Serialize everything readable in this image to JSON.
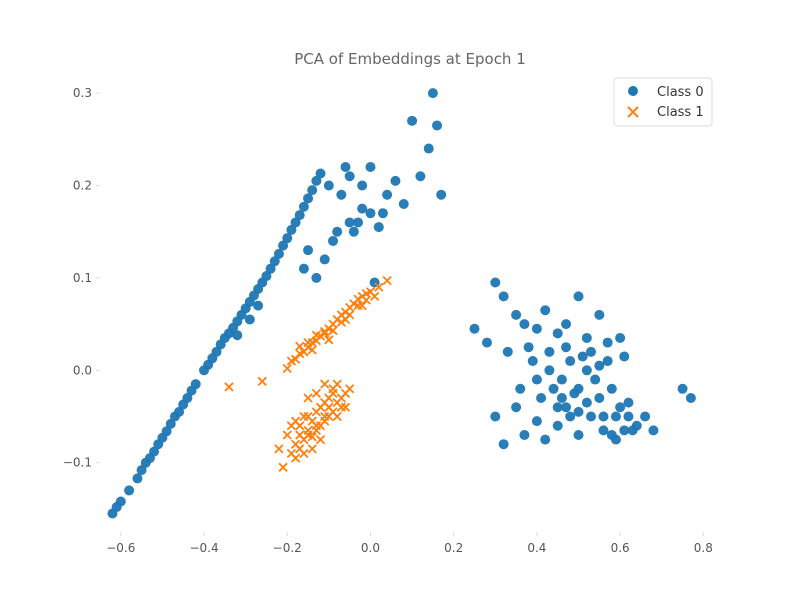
{
  "chart_data": {
    "type": "scatter",
    "title": "PCA of Embeddings at Epoch 1",
    "xlabel": "",
    "ylabel": "",
    "xlim": [
      -0.65,
      0.84
    ],
    "ylim": [
      -0.175,
      0.325
    ],
    "xticks": [
      -0.6,
      -0.4,
      -0.2,
      0.0,
      0.2,
      0.4,
      0.6,
      0.8
    ],
    "xtick_labels": [
      "−0.6",
      "−0.4",
      "−0.2",
      "0.0",
      "0.2",
      "0.4",
      "0.6",
      "0.8"
    ],
    "yticks": [
      -0.1,
      0.0,
      0.1,
      0.2,
      0.3
    ],
    "ytick_labels": [
      "−0.1",
      "0.0",
      "0.1",
      "0.2",
      "0.3"
    ],
    "grid": false,
    "legend_position": "top-right",
    "series": [
      {
        "name": "Class 0",
        "color": "#1f77b4",
        "marker": "circle",
        "points": [
          [
            -0.62,
            -0.155
          ],
          [
            -0.61,
            -0.148
          ],
          [
            -0.6,
            -0.142
          ],
          [
            -0.58,
            -0.13
          ],
          [
            -0.56,
            -0.117
          ],
          [
            -0.55,
            -0.108
          ],
          [
            -0.54,
            -0.1
          ],
          [
            -0.53,
            -0.095
          ],
          [
            -0.52,
            -0.088
          ],
          [
            -0.51,
            -0.08
          ],
          [
            -0.5,
            -0.073
          ],
          [
            -0.49,
            -0.066
          ],
          [
            -0.48,
            -0.058
          ],
          [
            -0.47,
            -0.05
          ],
          [
            -0.46,
            -0.045
          ],
          [
            -0.45,
            -0.037
          ],
          [
            -0.44,
            -0.03
          ],
          [
            -0.43,
            -0.022
          ],
          [
            -0.42,
            -0.015
          ],
          [
            -0.4,
            0.0
          ],
          [
            -0.39,
            0.006
          ],
          [
            -0.38,
            0.013
          ],
          [
            -0.37,
            0.02
          ],
          [
            -0.36,
            0.028
          ],
          [
            -0.35,
            0.035
          ],
          [
            -0.34,
            0.04
          ],
          [
            -0.33,
            0.046
          ],
          [
            -0.32,
            0.053
          ],
          [
            -0.31,
            0.06
          ],
          [
            -0.3,
            0.067
          ],
          [
            -0.29,
            0.074
          ],
          [
            -0.28,
            0.081
          ],
          [
            -0.27,
            0.088
          ],
          [
            -0.26,
            0.095
          ],
          [
            -0.25,
            0.102
          ],
          [
            -0.24,
            0.11
          ],
          [
            -0.23,
            0.118
          ],
          [
            -0.22,
            0.126
          ],
          [
            -0.21,
            0.135
          ],
          [
            -0.2,
            0.143
          ],
          [
            -0.19,
            0.152
          ],
          [
            -0.18,
            0.16
          ],
          [
            -0.17,
            0.168
          ],
          [
            -0.16,
            0.177
          ],
          [
            -0.15,
            0.186
          ],
          [
            -0.14,
            0.195
          ],
          [
            -0.13,
            0.205
          ],
          [
            -0.12,
            0.213
          ],
          [
            -0.1,
            0.2
          ],
          [
            -0.06,
            0.22
          ],
          [
            -0.05,
            0.21
          ],
          [
            -0.07,
            0.19
          ],
          [
            -0.03,
            0.16
          ],
          [
            -0.02,
            0.2
          ],
          [
            0.0,
            0.22
          ],
          [
            0.04,
            0.19
          ],
          [
            0.06,
            0.205
          ],
          [
            0.03,
            0.17
          ],
          [
            0.08,
            0.18
          ],
          [
            0.1,
            0.27
          ],
          [
            0.12,
            0.21
          ],
          [
            0.14,
            0.24
          ],
          [
            0.15,
            0.3
          ],
          [
            0.16,
            0.265
          ],
          [
            0.17,
            0.19
          ],
          [
            0.02,
            0.155
          ],
          [
            0.0,
            0.17
          ],
          [
            -0.02,
            0.175
          ],
          [
            -0.04,
            0.15
          ],
          [
            -0.05,
            0.16
          ],
          [
            -0.08,
            0.15
          ],
          [
            -0.09,
            0.14
          ],
          [
            -0.11,
            0.12
          ],
          [
            -0.13,
            0.1
          ],
          [
            -0.15,
            0.13
          ],
          [
            -0.16,
            0.11
          ],
          [
            0.01,
            0.095
          ],
          [
            -0.27,
            0.07
          ],
          [
            -0.29,
            0.055
          ],
          [
            -0.32,
            0.038
          ],
          [
            0.3,
            0.095
          ],
          [
            0.32,
            0.08
          ],
          [
            0.35,
            0.06
          ],
          [
            0.37,
            0.05
          ],
          [
            0.4,
            0.045
          ],
          [
            0.42,
            0.065
          ],
          [
            0.45,
            0.04
          ],
          [
            0.47,
            0.05
          ],
          [
            0.5,
            0.08
          ],
          [
            0.52,
            0.035
          ],
          [
            0.55,
            0.06
          ],
          [
            0.57,
            0.03
          ],
          [
            0.6,
            0.035
          ],
          [
            0.25,
            0.045
          ],
          [
            0.28,
            0.03
          ],
          [
            0.33,
            0.02
          ],
          [
            0.38,
            0.025
          ],
          [
            0.43,
            0.0
          ],
          [
            0.46,
            -0.01
          ],
          [
            0.48,
            0.01
          ],
          [
            0.5,
            -0.02
          ],
          [
            0.52,
            0.0
          ],
          [
            0.55,
            -0.03
          ],
          [
            0.58,
            -0.02
          ],
          [
            0.6,
            -0.04
          ],
          [
            0.62,
            -0.05
          ],
          [
            0.64,
            -0.06
          ],
          [
            0.66,
            -0.05
          ],
          [
            0.68,
            -0.065
          ],
          [
            0.75,
            -0.02
          ],
          [
            0.77,
            -0.03
          ],
          [
            0.3,
            -0.05
          ],
          [
            0.32,
            -0.08
          ],
          [
            0.35,
            -0.04
          ],
          [
            0.37,
            -0.07
          ],
          [
            0.4,
            -0.055
          ],
          [
            0.42,
            -0.075
          ],
          [
            0.45,
            -0.06
          ],
          [
            0.47,
            -0.04
          ],
          [
            0.5,
            -0.07
          ],
          [
            0.53,
            -0.05
          ],
          [
            0.56,
            -0.065
          ],
          [
            0.58,
            -0.07
          ],
          [
            0.61,
            -0.065
          ],
          [
            0.62,
            -0.035
          ],
          [
            0.4,
            -0.01
          ],
          [
            0.41,
            -0.03
          ],
          [
            0.44,
            -0.02
          ],
          [
            0.46,
            -0.03
          ],
          [
            0.49,
            -0.025
          ],
          [
            0.52,
            -0.035
          ],
          [
            0.54,
            -0.01
          ],
          [
            0.57,
            0.01
          ],
          [
            0.59,
            -0.05
          ],
          [
            0.63,
            -0.065
          ],
          [
            0.36,
            -0.02
          ],
          [
            0.39,
            0.01
          ],
          [
            0.43,
            0.02
          ],
          [
            0.47,
            0.025
          ],
          [
            0.51,
            0.015
          ],
          [
            0.53,
            0.02
          ],
          [
            0.55,
            0.005
          ],
          [
            0.56,
            -0.05
          ],
          [
            0.59,
            -0.075
          ],
          [
            0.61,
            0.015
          ],
          [
            0.48,
            -0.05
          ],
          [
            0.45,
            -0.04
          ],
          [
            0.5,
            -0.045
          ]
        ]
      },
      {
        "name": "Class 1",
        "color": "#ff7f0e",
        "marker": "x",
        "points": [
          [
            -0.18,
            0.012
          ],
          [
            -0.17,
            0.018
          ],
          [
            -0.16,
            0.02
          ],
          [
            -0.15,
            0.025
          ],
          [
            -0.14,
            0.03
          ],
          [
            -0.13,
            0.032
          ],
          [
            -0.12,
            0.037
          ],
          [
            -0.11,
            0.042
          ],
          [
            -0.1,
            0.045
          ],
          [
            -0.09,
            0.05
          ],
          [
            -0.08,
            0.055
          ],
          [
            -0.07,
            0.06
          ],
          [
            -0.06,
            0.063
          ],
          [
            -0.05,
            0.068
          ],
          [
            -0.04,
            0.072
          ],
          [
            -0.03,
            0.077
          ],
          [
            -0.02,
            0.08
          ],
          [
            -0.01,
            0.083
          ],
          [
            0.0,
            0.085
          ],
          [
            0.02,
            0.09
          ],
          [
            0.04,
            0.097
          ],
          [
            -0.19,
            0.01
          ],
          [
            -0.17,
            0.026
          ],
          [
            -0.15,
            0.03
          ],
          [
            -0.13,
            0.038
          ],
          [
            -0.11,
            0.04
          ],
          [
            -0.09,
            0.043
          ],
          [
            -0.07,
            0.052
          ],
          [
            -0.05,
            0.06
          ],
          [
            -0.03,
            0.07
          ],
          [
            -0.01,
            0.076
          ],
          [
            0.01,
            0.08
          ],
          [
            -0.2,
            0.002
          ],
          [
            -0.14,
            0.022
          ],
          [
            -0.1,
            0.033
          ],
          [
            -0.06,
            0.055
          ],
          [
            -0.02,
            0.07
          ],
          [
            -0.34,
            -0.018
          ],
          [
            -0.26,
            -0.012
          ],
          [
            -0.22,
            -0.085
          ],
          [
            -0.21,
            -0.105
          ],
          [
            -0.19,
            -0.09
          ],
          [
            -0.18,
            -0.08
          ],
          [
            -0.17,
            -0.085
          ],
          [
            -0.16,
            -0.075
          ],
          [
            -0.15,
            -0.07
          ],
          [
            -0.14,
            -0.072
          ],
          [
            -0.13,
            -0.065
          ],
          [
            -0.12,
            -0.06
          ],
          [
            -0.11,
            -0.055
          ],
          [
            -0.1,
            -0.05
          ],
          [
            -0.09,
            -0.045
          ],
          [
            -0.08,
            -0.05
          ],
          [
            -0.07,
            -0.04
          ],
          [
            -0.06,
            -0.04
          ],
          [
            -0.2,
            -0.07
          ],
          [
            -0.19,
            -0.06
          ],
          [
            -0.18,
            -0.055
          ],
          [
            -0.17,
            -0.06
          ],
          [
            -0.16,
            -0.05
          ],
          [
            -0.15,
            -0.05
          ],
          [
            -0.14,
            -0.055
          ],
          [
            -0.13,
            -0.045
          ],
          [
            -0.12,
            -0.04
          ],
          [
            -0.11,
            -0.035
          ],
          [
            -0.1,
            -0.03
          ],
          [
            -0.09,
            -0.02
          ],
          [
            -0.08,
            -0.015
          ],
          [
            -0.11,
            -0.015
          ],
          [
            -0.09,
            -0.025
          ],
          [
            -0.15,
            -0.03
          ],
          [
            -0.13,
            -0.025
          ],
          [
            -0.12,
            -0.075
          ],
          [
            -0.14,
            -0.085
          ],
          [
            -0.16,
            -0.09
          ],
          [
            -0.18,
            -0.095
          ],
          [
            -0.17,
            -0.07
          ],
          [
            -0.15,
            -0.065
          ],
          [
            -0.13,
            -0.06
          ],
          [
            -0.11,
            -0.05
          ],
          [
            -0.1,
            -0.04
          ],
          [
            -0.08,
            -0.035
          ],
          [
            -0.07,
            -0.03
          ],
          [
            -0.06,
            -0.025
          ],
          [
            -0.05,
            -0.02
          ]
        ]
      }
    ]
  }
}
